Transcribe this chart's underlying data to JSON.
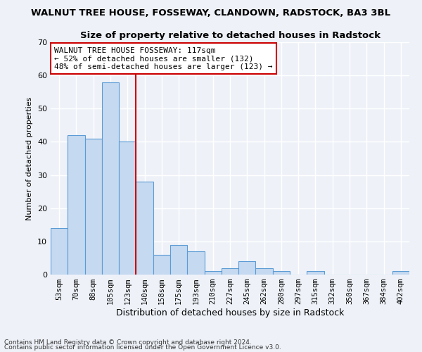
{
  "title": "WALNUT TREE HOUSE, FOSSEWAY, CLANDOWN, RADSTOCK, BA3 3BL",
  "subtitle": "Size of property relative to detached houses in Radstock",
  "xlabel": "Distribution of detached houses by size in Radstock",
  "ylabel": "Number of detached properties",
  "bar_color": "#c5d9f0",
  "bar_edge_color": "#5b9bd5",
  "categories": [
    "53sqm",
    "70sqm",
    "88sqm",
    "105sqm",
    "123sqm",
    "140sqm",
    "158sqm",
    "175sqm",
    "193sqm",
    "210sqm",
    "227sqm",
    "245sqm",
    "262sqm",
    "280sqm",
    "297sqm",
    "315sqm",
    "332sqm",
    "350sqm",
    "367sqm",
    "384sqm",
    "402sqm"
  ],
  "values": [
    14,
    42,
    41,
    58,
    40,
    28,
    6,
    9,
    7,
    1,
    2,
    4,
    2,
    1,
    0,
    1,
    0,
    0,
    0,
    0,
    1
  ],
  "vline_index": 4,
  "vline_color": "#cc0000",
  "ylim": [
    0,
    70
  ],
  "yticks": [
    0,
    10,
    20,
    30,
    40,
    50,
    60,
    70
  ],
  "annotation_text": "WALNUT TREE HOUSE FOSSEWAY: 117sqm\n← 52% of detached houses are smaller (132)\n48% of semi-detached houses are larger (123) →",
  "annotation_box_color": "#ffffff",
  "annotation_box_edge": "#cc0000",
  "footnote1": "Contains HM Land Registry data © Crown copyright and database right 2024.",
  "footnote2": "Contains public sector information licensed under the Open Government Licence v3.0.",
  "background_color": "#eef2f8",
  "grid_color": "#ffffff",
  "title_fontsize": 9.5,
  "subtitle_fontsize": 9.5
}
